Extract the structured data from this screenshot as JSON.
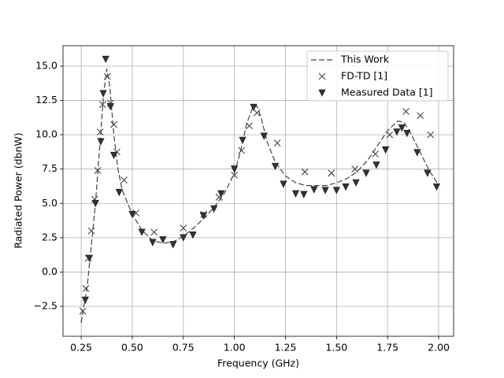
{
  "chart_data": {
    "type": "line",
    "x_label": "Frequency (GHz)",
    "y_label": "Radiated Power (dbnW)",
    "xlim": [
      0.161,
      2.073
    ],
    "ylim": [
      -4.68,
      16.49
    ],
    "xticks": [
      0.25,
      {
        "value": 0.5,
        "label": "0.50"
      },
      0.75,
      {
        "value": 1.0,
        "label": "1.00"
      },
      1.25,
      {
        "value": 1.5,
        "label": "1.50"
      },
      1.75,
      {
        "value": 2.0,
        "label": "2.00"
      }
    ],
    "yticks": [
      {
        "value": -2.5,
        "label": "−2.5"
      },
      {
        "value": 0,
        "label": "0.0"
      },
      2.5,
      {
        "value": 5,
        "label": "5.0"
      },
      7.5,
      {
        "value": 10,
        "label": "10.0"
      },
      12.5,
      {
        "value": 15,
        "label": "15.0"
      }
    ],
    "grid": true,
    "legend": "upper right",
    "series": [
      {
        "name": "This Work",
        "color": "#444444",
        "style": "dashed",
        "x": [
          0.25,
          0.28,
          0.3,
          0.32,
          0.34,
          0.36,
          0.375,
          0.39,
          0.41,
          0.43,
          0.45,
          0.5,
          0.55,
          0.6,
          0.65,
          0.7,
          0.75,
          0.8,
          0.85,
          0.9,
          0.95,
          1.0,
          1.03,
          1.06,
          1.09,
          1.11,
          1.13,
          1.16,
          1.2,
          1.25,
          1.3,
          1.35,
          1.4,
          1.45,
          1.5,
          1.55,
          1.6,
          1.65,
          1.7,
          1.75,
          1.8,
          1.83,
          1.86,
          1.9,
          1.95,
          2.0
        ],
        "values": [
          -3.7,
          -1,
          2,
          5,
          9,
          13,
          14.8,
          13.5,
          10,
          7.5,
          6,
          4.2,
          3,
          2.3,
          2.1,
          2.2,
          2.6,
          3.2,
          3.9,
          4.7,
          5.7,
          7.2,
          8.8,
          10.8,
          12.0,
          12.1,
          11.3,
          9.5,
          8.0,
          7.0,
          6.5,
          6.3,
          6.3,
          6.3,
          6.5,
          6.8,
          7.3,
          8.1,
          9.2,
          10.3,
          11.0,
          10.9,
          10.2,
          9.0,
          7.5,
          6.3
        ]
      },
      {
        "name": "FD-TD [1]",
        "color": "#444444",
        "marker": "x",
        "x": [
          0.258,
          0.273,
          0.285,
          0.3,
          0.316,
          0.331,
          0.343,
          0.355,
          0.378,
          0.393,
          0.41,
          0.425,
          0.46,
          0.518,
          0.607,
          0.75,
          0.85,
          0.925,
          1.0,
          1.035,
          1.073,
          1.11,
          1.21,
          1.345,
          1.475,
          1.59,
          1.69,
          1.76,
          1.84,
          1.91,
          1.96
        ],
        "values": [
          -2.85,
          -1.2,
          1.0,
          3.0,
          5.3,
          7.4,
          10.2,
          12.2,
          14.25,
          12.3,
          10.75,
          8.75,
          6.7,
          4.3,
          2.9,
          3.2,
          4.2,
          5.45,
          7.05,
          8.85,
          10.65,
          11.6,
          9.4,
          7.3,
          7.2,
          7.5,
          8.6,
          10.0,
          11.7,
          11.4,
          10.0
        ]
      },
      {
        "name": "Measured Data [1]",
        "color": "#333333",
        "marker": "v",
        "x": [
          0.27,
          0.29,
          0.32,
          0.346,
          0.358,
          0.37,
          0.393,
          0.41,
          0.436,
          0.5,
          0.547,
          0.6,
          0.65,
          0.7,
          0.75,
          0.797,
          0.848,
          0.9,
          0.935,
          1.0,
          1.04,
          1.094,
          1.145,
          1.2,
          1.24,
          1.3,
          1.34,
          1.39,
          1.445,
          1.5,
          1.545,
          1.595,
          1.645,
          1.695,
          1.74,
          1.795,
          1.82,
          1.845,
          1.895,
          1.945,
          1.99
        ],
        "values": [
          -2.05,
          1.0,
          5.0,
          9.5,
          13.0,
          15.5,
          12.05,
          8.5,
          5.8,
          4.2,
          2.9,
          2.15,
          2.35,
          2.0,
          2.5,
          2.7,
          4.1,
          4.6,
          5.7,
          7.5,
          9.6,
          12.0,
          9.9,
          7.7,
          6.4,
          5.7,
          5.65,
          6.0,
          5.95,
          5.95,
          6.2,
          6.5,
          7.2,
          7.8,
          8.9,
          10.2,
          10.5,
          10.1,
          8.7,
          7.2,
          6.2
        ]
      }
    ]
  }
}
